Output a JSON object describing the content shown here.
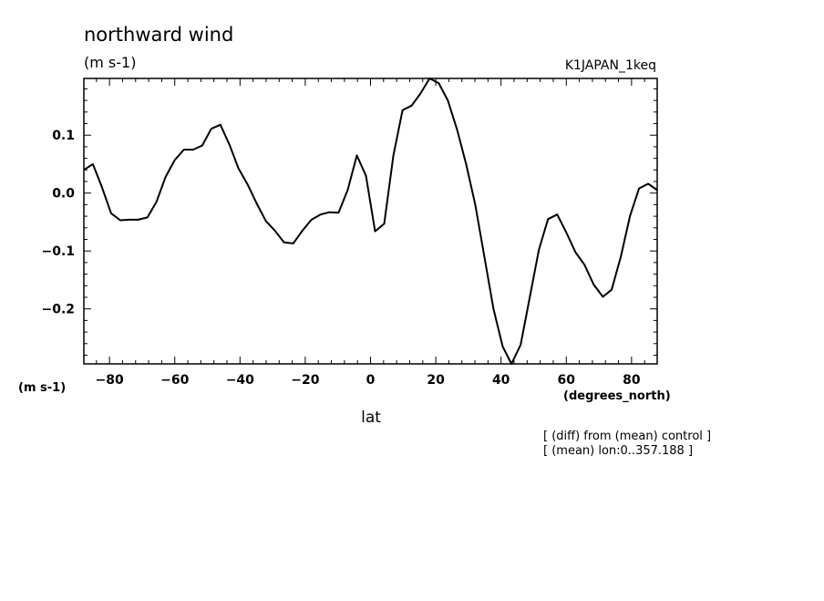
{
  "chart_data": {
    "type": "line",
    "title": "northward wind",
    "subtitle": "(m s-1)",
    "run_label": "K1JAPAN_1keq",
    "xlabel": "lat",
    "xunits_label": "(degrees_north)",
    "yunits_label": "(m s-1)",
    "notes": [
      "[ (diff) from (mean) control ]",
      "[ (mean) lon:0..357.188 ]"
    ],
    "xlim": [
      -87.86,
      87.86
    ],
    "ylim": [
      -0.295,
      0.198
    ],
    "xticks": [
      -80,
      -60,
      -40,
      -20,
      0,
      20,
      40,
      60,
      80
    ],
    "xtick_labels": [
      "−80",
      "−60",
      "−40",
      "−20",
      "0",
      "20",
      "40",
      "60",
      "80"
    ],
    "yticks": [
      0.1,
      0.0,
      -0.1,
      -0.2
    ],
    "ytick_labels": [
      "0.1",
      "0.0",
      "−0.1",
      "−0.2"
    ],
    "grid": false,
    "line_color": "#000000",
    "series": [
      {
        "x": [
          -87.9,
          -85.1,
          -82.3,
          -79.5,
          -76.7,
          -73.9,
          -71.2,
          -68.4,
          -65.6,
          -62.8,
          -60.0,
          -57.2,
          -54.4,
          -51.6,
          -48.8,
          -46.0,
          -43.2,
          -40.5,
          -37.7,
          -34.9,
          -32.1,
          -29.3,
          -26.5,
          -23.7,
          -20.9,
          -18.1,
          -15.3,
          -12.6,
          -9.8,
          -7.0,
          -4.2,
          -1.4,
          1.4,
          4.2,
          7.0,
          9.8,
          12.6,
          15.3,
          18.1,
          20.9,
          23.7,
          26.5,
          29.3,
          32.1,
          34.9,
          37.7,
          40.5,
          43.2,
          46.0,
          48.8,
          51.6,
          54.4,
          57.2,
          60.0,
          62.8,
          65.6,
          68.4,
          71.2,
          73.9,
          76.7,
          79.5,
          82.3,
          85.1,
          87.9
        ],
        "y": [
          0.04,
          0.05,
          0.01,
          -0.035,
          -0.047,
          -0.046,
          -0.046,
          -0.042,
          -0.015,
          0.028,
          0.057,
          0.075,
          0.075,
          0.082,
          0.111,
          0.118,
          0.083,
          0.043,
          0.015,
          -0.018,
          -0.048,
          -0.065,
          -0.085,
          -0.087,
          -0.065,
          -0.046,
          -0.037,
          -0.033,
          -0.034,
          0.005,
          0.065,
          0.03,
          -0.066,
          -0.053,
          0.065,
          0.143,
          0.151,
          0.172,
          0.198,
          0.19,
          0.16,
          0.11,
          0.05,
          -0.02,
          -0.11,
          -0.2,
          -0.265,
          -0.295,
          -0.262,
          -0.18,
          -0.098,
          -0.045,
          -0.037,
          -0.068,
          -0.102,
          -0.124,
          -0.158,
          -0.179,
          -0.167,
          -0.11,
          -0.04,
          0.008,
          0.016,
          0.005
        ]
      }
    ]
  }
}
